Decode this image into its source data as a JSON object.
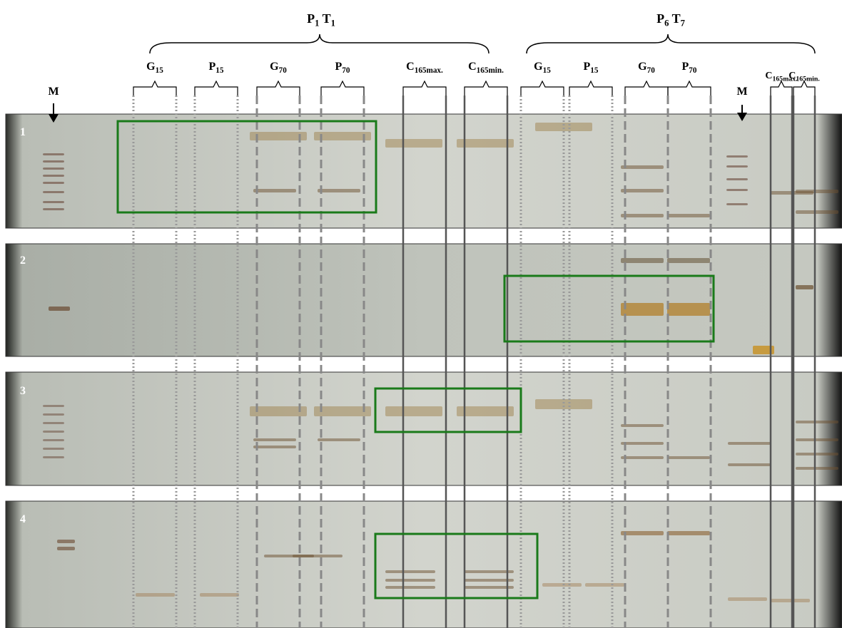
{
  "groups": [
    {
      "label": [
        {
          "text": "P",
          "sub": "1"
        },
        {
          "text": "T",
          "sub": "1"
        }
      ]
    },
    {
      "label": [
        {
          "text": "P",
          "sub": "6"
        },
        {
          "text": "T",
          "sub": "7"
        }
      ]
    }
  ],
  "lanes": [
    {
      "text": "G",
      "sub": "15"
    },
    {
      "text": "P",
      "sub": "15"
    },
    {
      "text": "G",
      "sub": "70"
    },
    {
      "text": "P",
      "sub": "70"
    },
    {
      "text": "C",
      "sub": "165max."
    },
    {
      "text": "C",
      "sub": "165min."
    },
    {
      "text": "G",
      "sub": "15"
    },
    {
      "text": "P",
      "sub": "15"
    },
    {
      "text": "G",
      "sub": "70"
    },
    {
      "text": "P",
      "sub": "70"
    },
    {
      "text": "C",
      "sub": "165max."
    },
    {
      "text": "C",
      "sub": "165min."
    }
  ],
  "markers": [
    "M",
    "M"
  ],
  "panels": [
    "1",
    "2",
    "3",
    "4"
  ]
}
